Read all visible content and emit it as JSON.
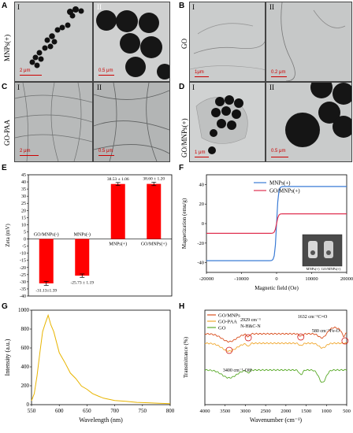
{
  "panels": {
    "A": {
      "letter": "A",
      "side_label": "MNPs(+)",
      "sub1": "I",
      "sub2": "II",
      "scale1": "2 μm",
      "scale2": "0.5 μm"
    },
    "B": {
      "letter": "B",
      "side_label": "GO",
      "sub1": "I",
      "sub2": "II",
      "scale1": "1μm",
      "scale2": "0.2 μm"
    },
    "C": {
      "letter": "C",
      "side_label": "GO-PAA",
      "sub1": "I",
      "sub2": "II",
      "scale1": "2 μm",
      "scale2": "0.5 μm"
    },
    "D": {
      "letter": "D",
      "side_label": "GO/MNPs(+)",
      "sub1": "I",
      "sub2": "II",
      "scale1": "1 μm",
      "scale2": "0.5 μm"
    },
    "E": {
      "letter": "E"
    },
    "F": {
      "letter": "F"
    },
    "G": {
      "letter": "G"
    },
    "H": {
      "letter": "H"
    }
  },
  "chart_data": [
    {
      "id": "E",
      "type": "bar",
      "ylabel": "Zeta (mV)",
      "ylim": [
        -40,
        45
      ],
      "yticks": [
        -40,
        -35,
        -30,
        -25,
        -20,
        -15,
        -10,
        -5,
        0,
        5,
        10,
        15,
        20,
        25,
        30,
        35,
        40,
        45
      ],
      "categories": [
        "GO/MNPs(-)",
        "MNPs(-)",
        "MNPs(+)",
        "GO/MNPs(+)"
      ],
      "values": [
        -31.13,
        -25.73,
        38.53,
        38.6
      ],
      "errors": [
        1.39,
        1.19,
        1.06,
        1.2
      ],
      "value_labels": [
        "-31.13±1.39",
        "-25.73 ± 1.19",
        "38.53 ± 1.06",
        "38.60 ± 1.20"
      ],
      "color": "#ff0000"
    },
    {
      "id": "F",
      "type": "line",
      "xlabel": "Magnetic field (Oe)",
      "ylabel": "Magnetization (emu/g)",
      "xlim": [
        -20000,
        20000
      ],
      "ylim": [
        -50,
        50
      ],
      "xticks": [
        -20000,
        -10000,
        0,
        10000,
        20000
      ],
      "yticks": [
        -40,
        -20,
        0,
        20,
        40
      ],
      "series": [
        {
          "name": "MNPs(+)",
          "color": "#3a7bd5",
          "saturation": 38,
          "width": 500
        },
        {
          "name": "GO/MNPs(+)",
          "color": "#e03050",
          "saturation": 10,
          "width": 500
        }
      ],
      "inset_labels": [
        "MNPs(+)",
        "GO/MNPs(+)"
      ]
    },
    {
      "id": "G",
      "type": "line",
      "xlabel": "Wavelength (nm)",
      "ylabel": "Intensity (a.u.)",
      "xlim": [
        550,
        800
      ],
      "ylim": [
        0,
        1000
      ],
      "xticks": [
        550,
        600,
        650,
        700,
        750,
        800
      ],
      "yticks": [
        0,
        200,
        400,
        600,
        800,
        1000
      ],
      "series": [
        {
          "name": "",
          "color": "#e8b400",
          "x": [
            550,
            555,
            560,
            565,
            570,
            575,
            580,
            585,
            590,
            600,
            610,
            620,
            630,
            640,
            650,
            660,
            670,
            680,
            690,
            700,
            720,
            740,
            760,
            780,
            800
          ],
          "y": [
            40,
            120,
            300,
            560,
            760,
            880,
            930,
            860,
            760,
            560,
            440,
            340,
            270,
            200,
            160,
            120,
            90,
            70,
            55,
            45,
            35,
            25,
            20,
            15,
            10
          ]
        }
      ]
    },
    {
      "id": "H",
      "type": "line",
      "xlabel": "Wavenumber (cm⁻¹)",
      "ylabel": "Transmittance (%)",
      "xlim": [
        4000,
        500
      ],
      "xticks": [
        4000,
        3500,
        3000,
        2500,
        2000,
        1500,
        1000,
        500
      ],
      "series": [
        {
          "name": "GO/MNPs",
          "color": "#d94f1e"
        },
        {
          "name": "GO-PAA",
          "color": "#f0a830"
        },
        {
          "name": "GO",
          "color": "#5aaa2a"
        }
      ],
      "annotations": [
        "3400 cm⁻¹-OH",
        "2929 cm⁻¹",
        "N-H&C-N",
        "1632 cm⁻¹C=O",
        "580 cm⁻¹Fe-O"
      ]
    }
  ]
}
